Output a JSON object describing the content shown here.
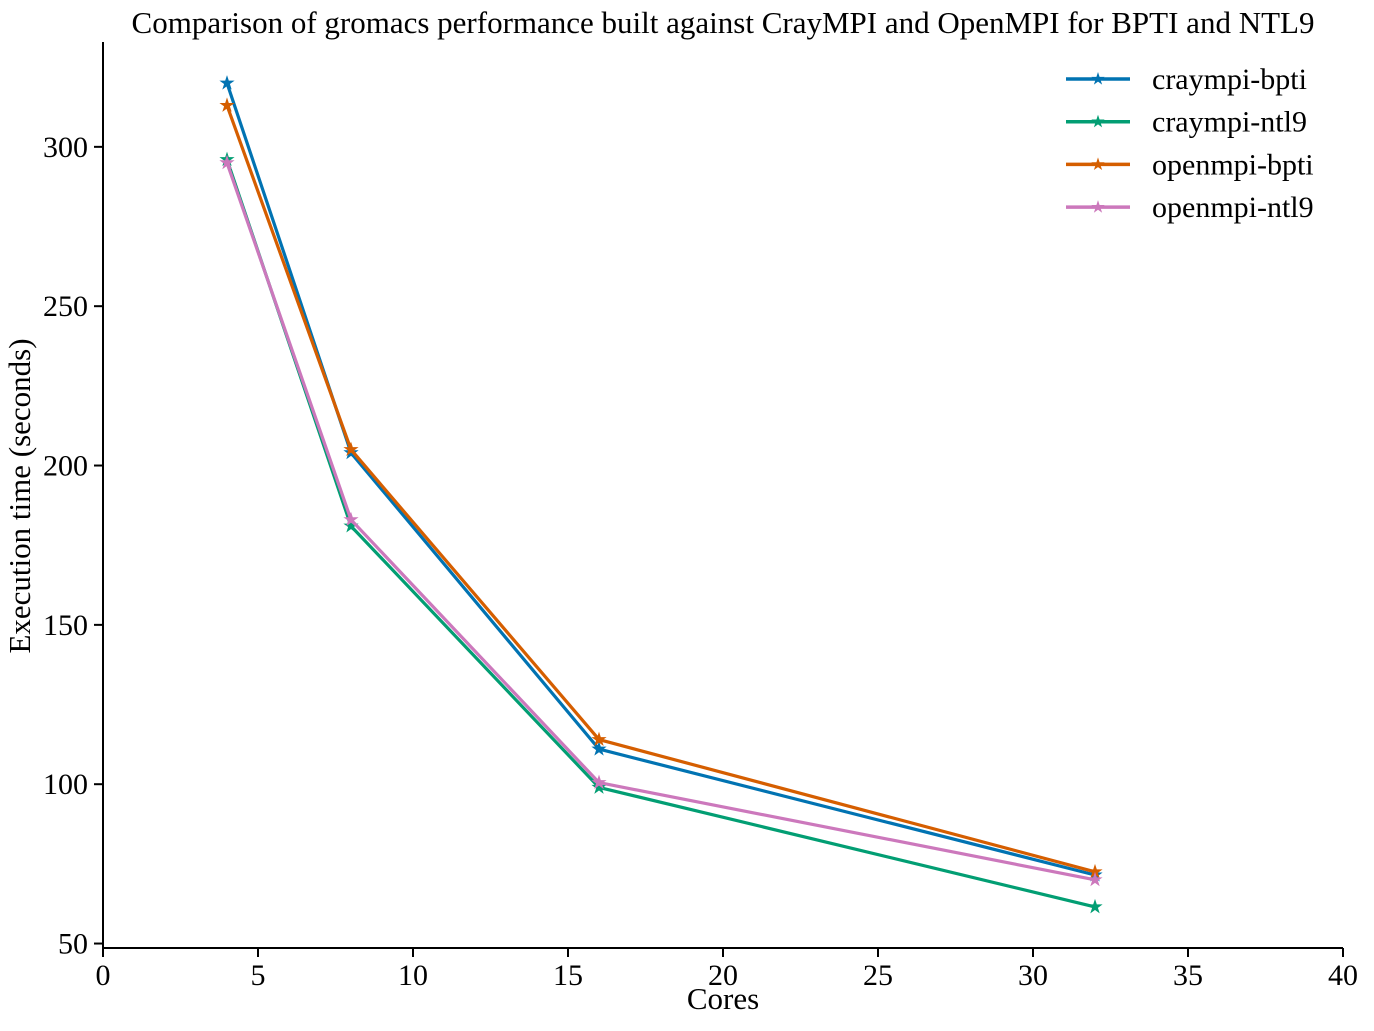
{
  "chart_data": {
    "type": "line",
    "title": "Comparison of gromacs performance built against CrayMPI and OpenMPI for BPTI and NTL9",
    "xlabel": "Cores",
    "ylabel": "Execution time (seconds)",
    "x": [
      4,
      8,
      16,
      32
    ],
    "series": [
      {
        "name": "craympi-bpti",
        "color": "#0173B2",
        "values": [
          320,
          204,
          111,
          71.5
        ]
      },
      {
        "name": "craympi-ntl9",
        "color": "#029E73",
        "values": [
          296,
          181,
          99,
          61.5
        ]
      },
      {
        "name": "openmpi-bpti",
        "color": "#D55E00",
        "values": [
          313,
          205,
          114,
          72.5
        ]
      },
      {
        "name": "openmpi-ntl9",
        "color": "#CC78BC",
        "values": [
          295,
          183,
          100.5,
          70
        ]
      }
    ],
    "xlim": [
      0,
      40
    ],
    "ylim": [
      48.6,
      332.9
    ],
    "xticks": [
      0,
      5,
      10,
      15,
      20,
      25,
      30,
      35,
      40
    ],
    "yticks": [
      50,
      100,
      150,
      200,
      250,
      300
    ],
    "grid": false,
    "legend_position": "upper right",
    "marker": "star",
    "background_color": "#ffffff",
    "axis_color": "#000000"
  }
}
